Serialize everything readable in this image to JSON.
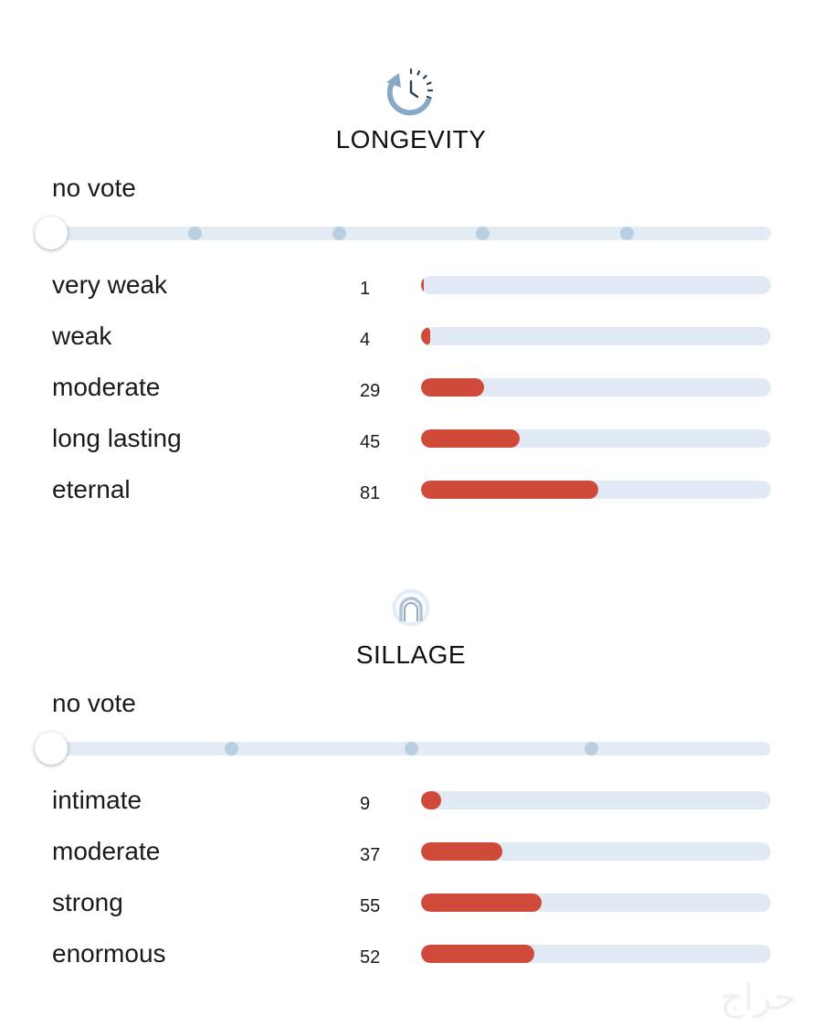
{
  "longevity": {
    "title": "LONGEVITY",
    "icon": "clock-refresh-icon",
    "vote_label": "no vote",
    "slider_stops": 5,
    "rows": [
      {
        "label": "very weak",
        "count": "1",
        "value": 1
      },
      {
        "label": "weak",
        "count": "4",
        "value": 4
      },
      {
        "label": "moderate",
        "count": "29",
        "value": 29
      },
      {
        "label": "long lasting",
        "count": "45",
        "value": 45
      },
      {
        "label": "eternal",
        "count": "81",
        "value": 81
      }
    ]
  },
  "sillage": {
    "title": "SILLAGE",
    "icon": "person-aura-icon",
    "vote_label": "no vote",
    "slider_stops": 4,
    "rows": [
      {
        "label": "intimate",
        "count": "9",
        "value": 9
      },
      {
        "label": "moderate",
        "count": "37",
        "value": 37
      },
      {
        "label": "strong",
        "count": "55",
        "value": 55
      },
      {
        "label": "enormous",
        "count": "52",
        "value": 52
      }
    ]
  },
  "bar_scale_max": 160,
  "watermark": "حراج",
  "colors": {
    "bar_fill": "#cf4a38",
    "bar_track": "#e1eaf4",
    "slider_dot": "#b9cfe0",
    "icon_blue": "#8aa9c6"
  }
}
